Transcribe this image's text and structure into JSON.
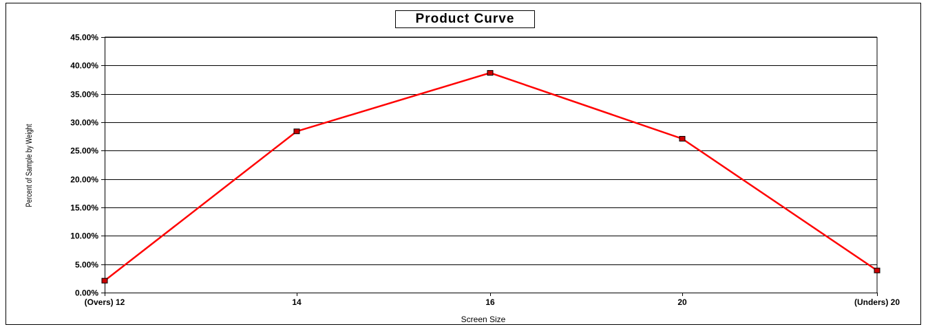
{
  "chart_data": {
    "type": "line",
    "title": "Product Curve",
    "xlabel": "Screen Size",
    "ylabel": "Percent of Sample by Weight",
    "categories": [
      "(Overs) 12",
      "14",
      "16",
      "20",
      "(Unders) 20"
    ],
    "series": [
      {
        "values": [
          2.1,
          28.4,
          38.7,
          27.1,
          3.9
        ],
        "color": "#ff0000",
        "marker": "square",
        "marker_fill": "#cc0000"
      }
    ],
    "y_tick_labels": [
      "0.00%",
      "5.00%",
      "10.00%",
      "15.00%",
      "20.00%",
      "25.00%",
      "30.00%",
      "35.00%",
      "40.00%",
      "45.00%"
    ],
    "ylim": [
      0,
      45
    ],
    "y_step": 5,
    "grid": true,
    "legend": "none"
  }
}
